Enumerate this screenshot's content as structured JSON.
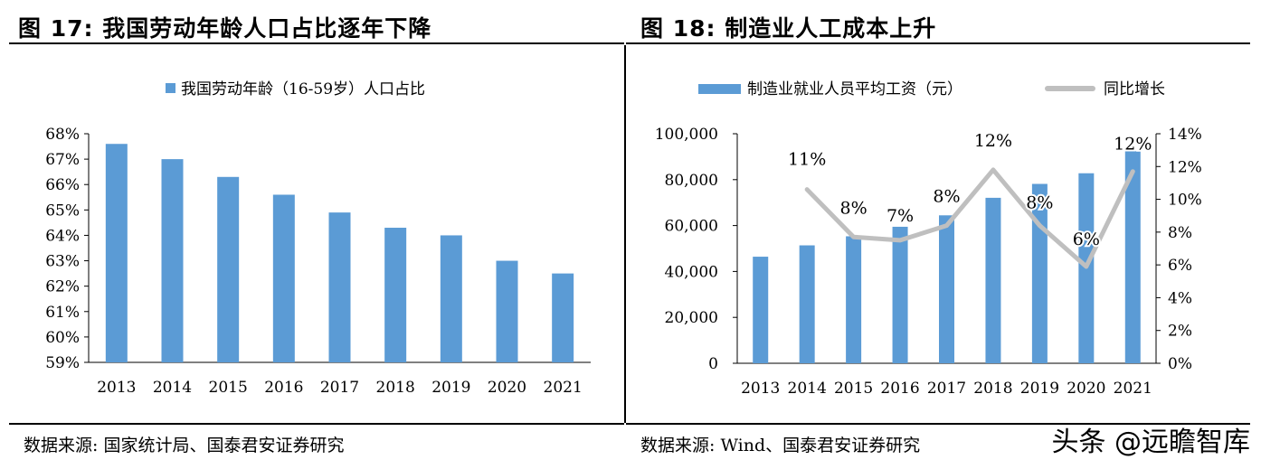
{
  "left": {
    "figure_title": "图 17: 我国劳动年龄人口占比逐年下降",
    "source": "数据来源: 国家统计局、国泰君安证券研究"
  },
  "right": {
    "figure_title": "图 18: 制造业人工成本上升",
    "source": "数据来源: Wind、国泰君安证券研究"
  },
  "watermark": "头条 @远瞻智库",
  "colors": {
    "bar": "#5b9bd5",
    "line": "#bfbfbf",
    "axis": "#000000"
  },
  "chart_data": [
    {
      "type": "bar",
      "title": "",
      "legend": [
        {
          "name": "我国劳动年龄（16-59岁）人口占比",
          "kind": "bar"
        }
      ],
      "legend_position": "top",
      "categories": [
        "2013",
        "2014",
        "2015",
        "2016",
        "2017",
        "2018",
        "2019",
        "2020",
        "2021"
      ],
      "values": [
        67.6,
        67.0,
        66.3,
        65.6,
        64.9,
        64.3,
        64.0,
        63.0,
        62.5
      ],
      "unit": "%",
      "ylim": [
        59,
        68
      ],
      "yticks": [
        "59%",
        "60%",
        "61%",
        "62%",
        "63%",
        "64%",
        "65%",
        "66%",
        "67%",
        "68%"
      ],
      "grid": false
    },
    {
      "type": "bar+line",
      "title": "",
      "legend": [
        {
          "name": "制造业就业人员平均工资（元）",
          "kind": "bar"
        },
        {
          "name": "同比增长",
          "kind": "line"
        }
      ],
      "legend_position": "top",
      "categories": [
        "2013",
        "2014",
        "2015",
        "2016",
        "2017",
        "2018",
        "2019",
        "2020",
        "2021"
      ],
      "series": [
        {
          "name": "制造业就业人员平均工资（元）",
          "axis": "left",
          "values": [
            46431,
            51369,
            55324,
            59470,
            64452,
            72088,
            78147,
            82783,
            92459
          ]
        },
        {
          "name": "同比增长",
          "axis": "right",
          "values": [
            null,
            10.6,
            7.7,
            7.5,
            8.4,
            11.8,
            8.4,
            5.9,
            11.7
          ],
          "labels": [
            "",
            "11%",
            "8%",
            "7%",
            "8%",
            "12%",
            "8%",
            "6%",
            "12%"
          ]
        }
      ],
      "ylim_left": [
        0,
        100000
      ],
      "yticks_left": [
        "0",
        "20,000",
        "40,000",
        "60,000",
        "80,000",
        "100,000"
      ],
      "ylim_right": [
        0,
        14
      ],
      "yticks_right": [
        "0%",
        "2%",
        "4%",
        "6%",
        "8%",
        "10%",
        "12%",
        "14%"
      ],
      "grid": false
    }
  ]
}
